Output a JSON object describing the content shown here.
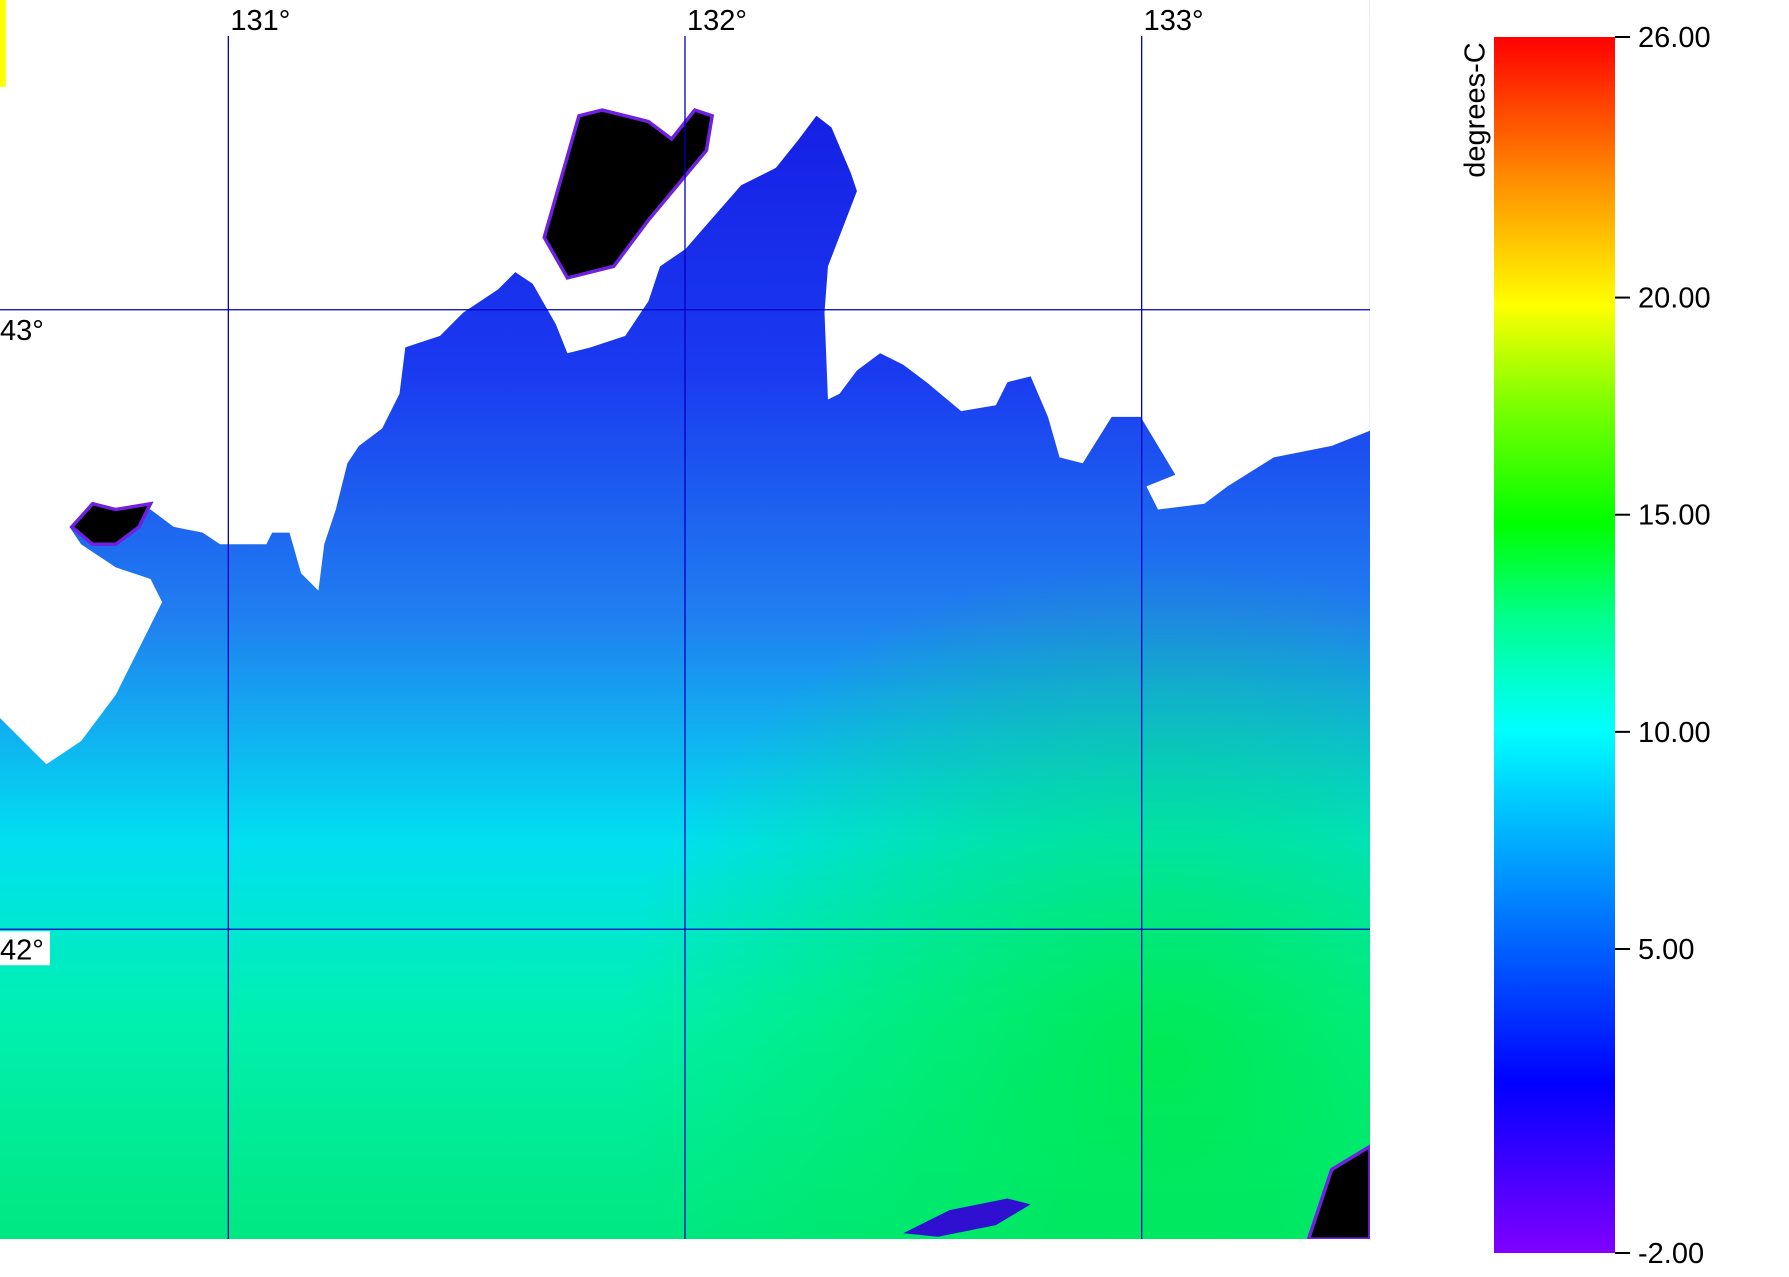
{
  "chart_data": {
    "type": "map",
    "colorbar_label": "degrees-C",
    "xlim": [
      130.5,
      133.5
    ],
    "ylim": [
      41.5,
      43.5
    ],
    "xticks": [
      {
        "value": 131,
        "label": "131°"
      },
      {
        "value": 132,
        "label": "132°"
      },
      {
        "value": 133,
        "label": "133°"
      }
    ],
    "yticks": [
      {
        "value": 43,
        "label": "43°"
      },
      {
        "value": 42,
        "label": "42°"
      }
    ],
    "colorbar_lim": [
      -2,
      26
    ],
    "colorbar_ticks": [
      {
        "value": 26,
        "label": "26.00"
      },
      {
        "value": 20,
        "label": "20.00"
      },
      {
        "value": 15,
        "label": "15.00"
      },
      {
        "value": 10,
        "label": "10.00"
      },
      {
        "value": 5,
        "label": "5.00"
      },
      {
        "value": -2,
        "label": "-2.00"
      }
    ]
  }
}
